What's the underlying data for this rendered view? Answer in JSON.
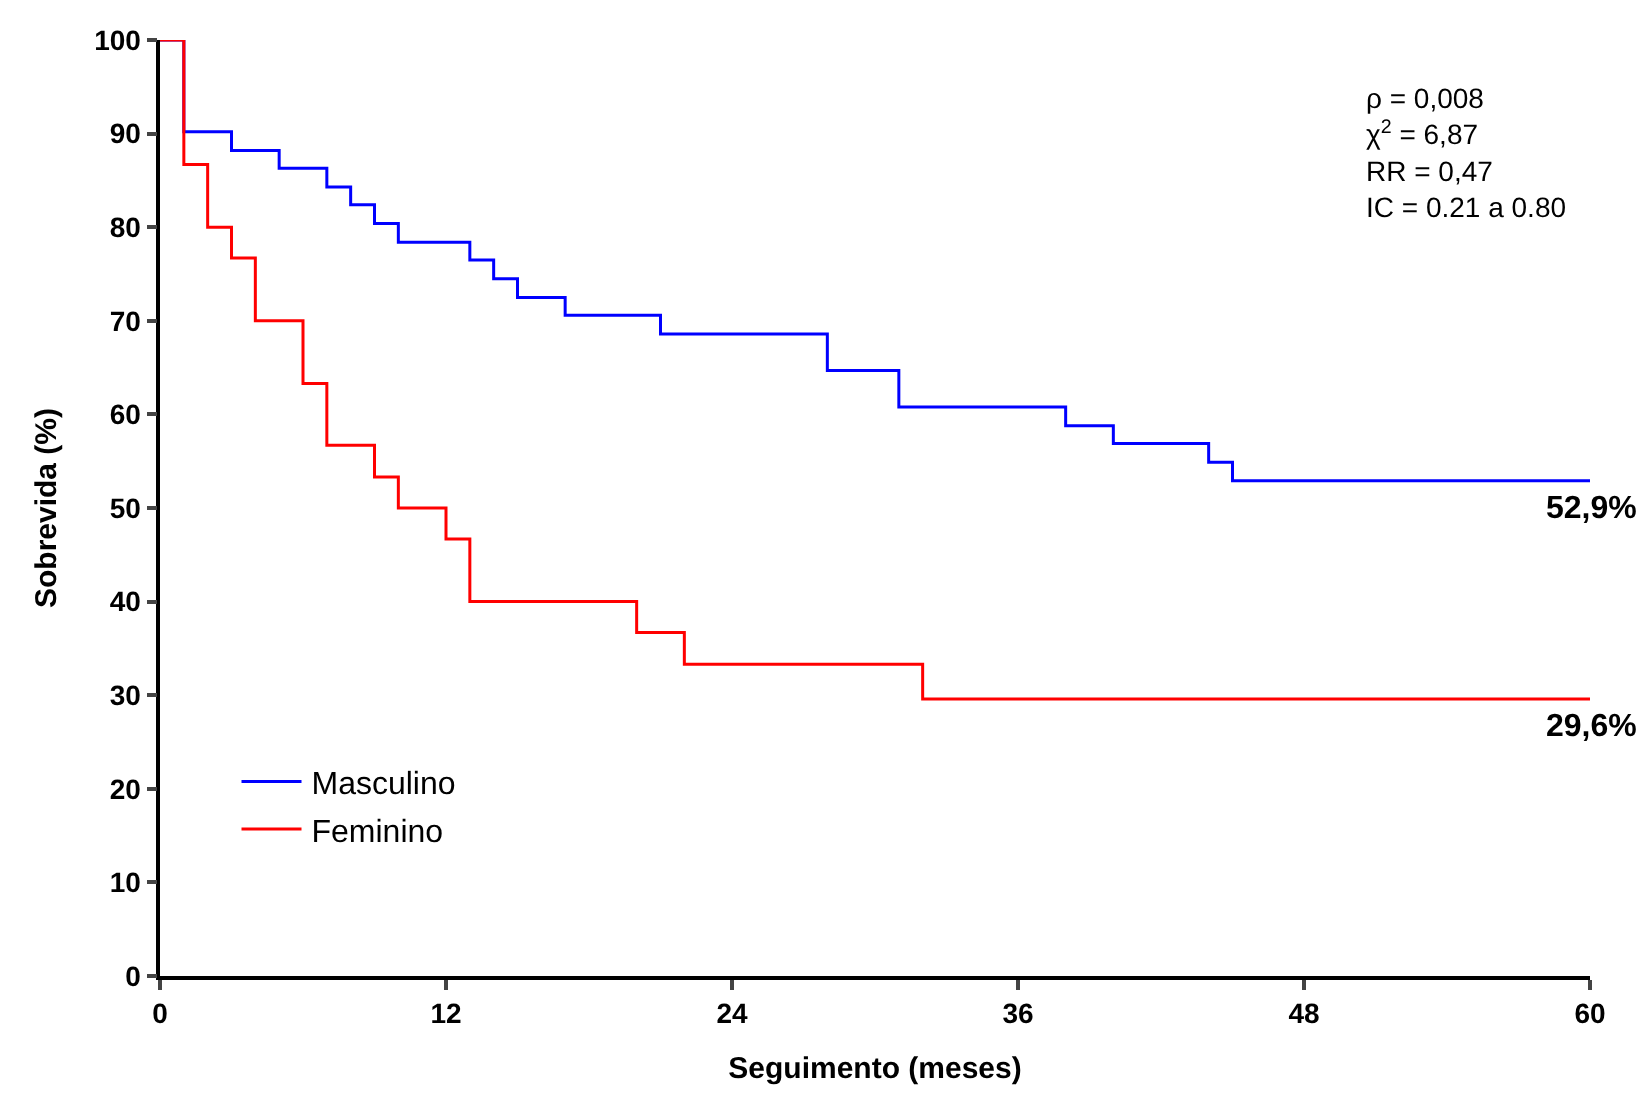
{
  "chart_data": {
    "type": "step",
    "xlabel": "Seguimento (meses)",
    "ylabel": "Sobrevida (%)",
    "xlim": [
      0,
      60
    ],
    "xticks": [
      0,
      12,
      24,
      36,
      48,
      60
    ],
    "ylim": [
      0,
      100
    ],
    "yticks": [
      0,
      10,
      20,
      30,
      40,
      50,
      60,
      70,
      80,
      90,
      100
    ],
    "legend": "bottom left",
    "marker": "none",
    "line_style": "solid",
    "series": [
      {
        "name": "Masculino",
        "color": "#0000ff",
        "x": [
          0,
          1,
          3,
          5,
          7,
          8,
          9,
          10,
          13,
          14,
          15,
          17,
          21,
          28,
          31,
          38,
          40,
          44,
          45,
          60
        ],
        "values": [
          100,
          90.2,
          88.2,
          86.3,
          84.3,
          82.4,
          80.4,
          78.4,
          76.5,
          74.5,
          72.5,
          70.6,
          68.6,
          64.7,
          60.8,
          58.8,
          56.9,
          54.9,
          52.9,
          52.9
        ]
      },
      {
        "name": "Feminino",
        "color": "#ff0000",
        "x": [
          0,
          1,
          2,
          3,
          4,
          6,
          7,
          9,
          10,
          12,
          13,
          20,
          22,
          32,
          60
        ],
        "values": [
          100,
          86.7,
          80.0,
          76.7,
          70.0,
          63.3,
          56.7,
          53.3,
          50.0,
          46.7,
          40.0,
          36.7,
          33.3,
          29.6,
          29.6
        ]
      }
    ],
    "annotations": [
      {
        "text": "52,9%",
        "x": 60,
        "y": 52.9
      },
      {
        "text": "29,6%",
        "x": 60,
        "y": 29.6
      },
      "ρ = 0,008",
      "χ$^{2}$ = 6,87",
      "RR = 0,47",
      "IC = 0.21 a 0.80"
    ]
  }
}
